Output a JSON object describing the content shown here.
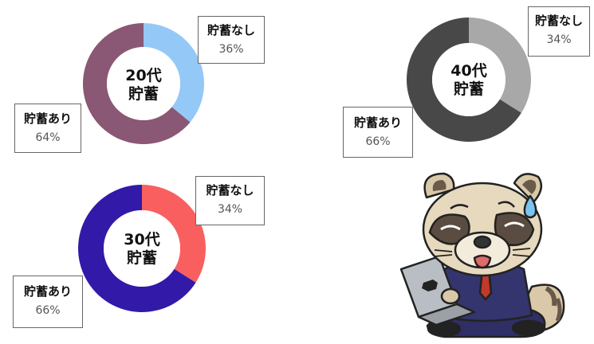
{
  "chart_data": [
    {
      "type": "pie",
      "donut": true,
      "center_label": [
        "20代",
        "貯蓄"
      ],
      "slices": [
        {
          "label": "貯蓄なし",
          "value": 36,
          "value_label": "36%",
          "color": "#94c8f7"
        },
        {
          "label": "貯蓄あり",
          "value": 64,
          "value_label": "64%",
          "color": "#8a5774"
        }
      ]
    },
    {
      "type": "pie",
      "donut": true,
      "center_label": [
        "40代",
        "貯蓄"
      ],
      "slices": [
        {
          "label": "貯蓄なし",
          "value": 34,
          "value_label": "34%",
          "color": "#a8a8a8"
        },
        {
          "label": "貯蓄あり",
          "value": 66,
          "value_label": "66%",
          "color": "#484848"
        }
      ]
    },
    {
      "type": "pie",
      "donut": true,
      "center_label": [
        "30代",
        "貯蓄"
      ],
      "slices": [
        {
          "label": "貯蓄なし",
          "value": 34,
          "value_label": "34%",
          "color": "#f95f5f"
        },
        {
          "label": "貯蓄あり",
          "value": 66,
          "value_label": "66%",
          "color": "#3219a8"
        }
      ]
    }
  ],
  "illustration": {
    "name": "raccoon-dog-businessman-with-laptop"
  }
}
